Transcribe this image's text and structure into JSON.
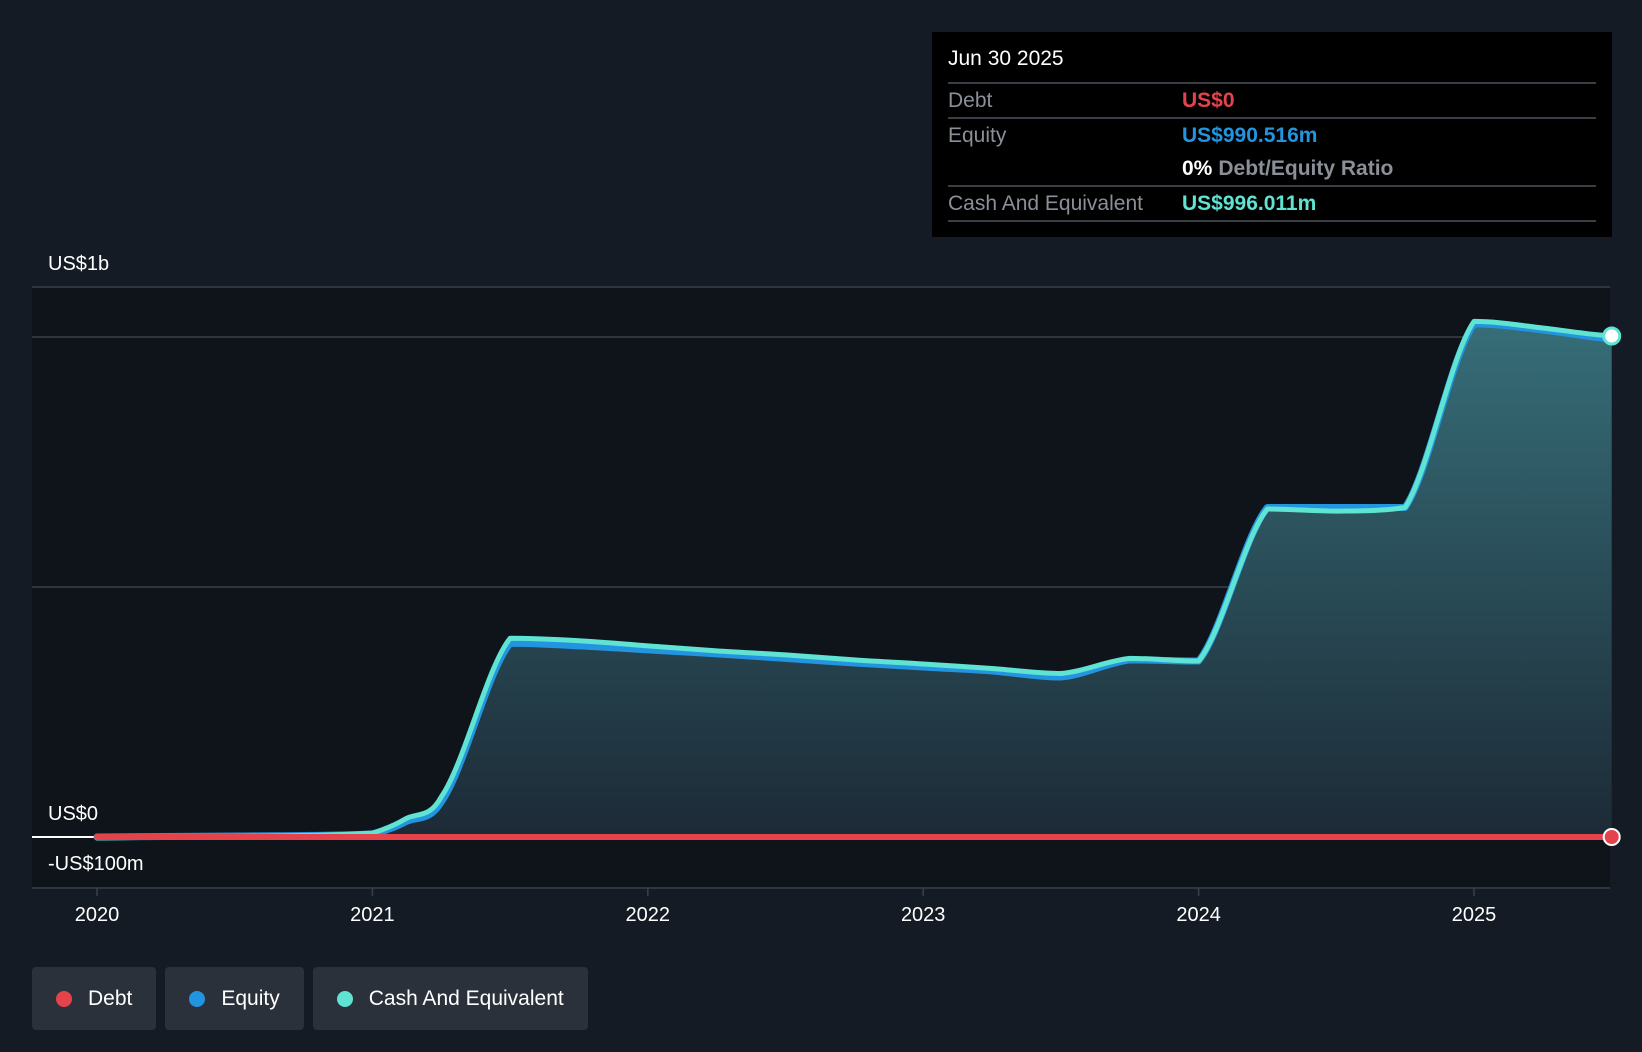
{
  "tooltip": {
    "date": "Jun 30 2025",
    "rows": [
      {
        "label": "Debt",
        "value": "US$0"
      },
      {
        "label": "Equity",
        "value": "US$990.516m"
      },
      {
        "label": "",
        "value": ""
      },
      {
        "label": "Cash And Equivalent",
        "value": "US$996.011m"
      }
    ],
    "ratio_value": "0%",
    "ratio_label": "Debt/Equity Ratio"
  },
  "colors": {
    "background": "#151b24",
    "plot_background": "#0f141b",
    "debt": "#e5434b",
    "equity": "#2394df",
    "cash": "#5fe3d2",
    "grid": "#3a404a",
    "area_top": "#366e78",
    "area_bottom": "#1c2a36"
  },
  "legend": [
    {
      "label": "Debt",
      "color": "#e5434b"
    },
    {
      "label": "Equity",
      "color": "#2394df"
    },
    {
      "label": "Cash And Equivalent",
      "color": "#5fe3d2"
    }
  ],
  "chart_data": {
    "type": "area",
    "title": "",
    "xlabel": "",
    "ylabel": "",
    "y_tick_labels": [
      {
        "value": 1100,
        "label": "US$1b"
      },
      {
        "value": 0,
        "label": "US$0"
      },
      {
        "value": -100,
        "label": "-US$100m"
      }
    ],
    "x_tick_labels": [
      "2020",
      "2021",
      "2022",
      "2023",
      "2024",
      "2025"
    ],
    "x_tick_years": [
      2020,
      2021,
      2022,
      2023,
      2024,
      2025
    ],
    "ylim": [
      -100,
      1100
    ],
    "xlim": [
      2019.765,
      2025.5
    ],
    "grid": true,
    "legend_position": "bottom-left",
    "series": [
      {
        "name": "Debt",
        "color": "#e5434b",
        "x": [
          2020.0,
          2025.5
        ],
        "values": [
          0,
          0
        ]
      },
      {
        "name": "Equity",
        "color": "#2394df",
        "x": [
          2020.0,
          2020.5,
          2021.0,
          2021.12,
          2021.25,
          2021.5,
          2021.75,
          2022.0,
          2022.25,
          2022.5,
          2022.75,
          2023.0,
          2023.25,
          2023.5,
          2023.75,
          2024.0,
          2024.25,
          2024.5,
          2024.75,
          2025.0,
          2025.25,
          2025.5
        ],
        "values": [
          0,
          2,
          6,
          30,
          70,
          385,
          380,
          372,
          364,
          355,
          346,
          338,
          330,
          318,
          352,
          350,
          655,
          655,
          655,
          1020,
          1008,
          990.516
        ]
      },
      {
        "name": "Cash And Equivalent",
        "color": "#5fe3d2",
        "x": [
          2020.0,
          2020.5,
          2021.0,
          2021.12,
          2021.25,
          2021.5,
          2021.75,
          2022.0,
          2022.25,
          2022.5,
          2022.75,
          2023.0,
          2023.25,
          2023.5,
          2023.75,
          2024.0,
          2024.25,
          2024.5,
          2024.75,
          2025.0,
          2025.25,
          2025.5
        ],
        "values": [
          -2,
          1,
          8,
          36,
          80,
          395,
          390,
          380,
          370,
          362,
          352,
          344,
          335,
          325,
          355,
          350,
          652,
          648,
          655,
          1025,
          1012,
          996.011
        ]
      }
    ]
  }
}
